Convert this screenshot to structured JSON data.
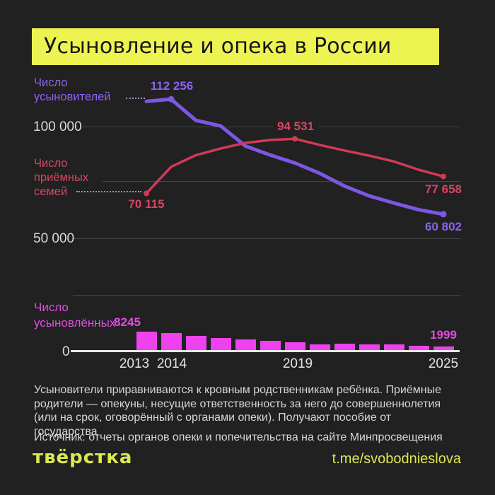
{
  "title": "Усыновление и опека в России",
  "line_chart": {
    "adopters_label": "Число\nусыновителей",
    "foster_label": "Число\nприёмных\nсемей",
    "y_ticks": {
      "tick_100k": "100 000",
      "tick_50k": "50 000",
      "tick_0": "0"
    },
    "annotations": {
      "adopters_peak": "112 256",
      "adopters_end": "60 802",
      "foster_start": "70 115",
      "foster_peak": "94 531",
      "foster_end": "77 658"
    }
  },
  "bar_chart": {
    "label": "Число\nусыновлённых",
    "first_value": "8245",
    "last_value": "1999"
  },
  "x_axis": [
    "2013",
    "2014",
    "2019",
    "2025"
  ],
  "description": "Усыновители приравниваются к кровным родственникам ребёнка. Приёмные\nродители — опекуны, несущие ответственность за него до совершеннолетия\n(или на срок, оговорённый с органами опеки). Получают пособие от государства",
  "source": "Источник: отчеты органов опеки и попечительства на сайте Минпросвещения",
  "footer": {
    "logo_text": "твёрстка",
    "handle": "t.me/svobodnieslova"
  },
  "colors": {
    "background": "#212121",
    "banner_yellow": "#edf351",
    "footer_yellow": "#dce84e",
    "adopters_purple": "#7e56e4",
    "foster_red": "#d13a55",
    "adopted_magenta": "#ee42ee",
    "gridline": "#47474a",
    "axis_text": "#d9d9d9"
  },
  "chart_data": [
    {
      "type": "line",
      "title": "Усыновление и опека в России",
      "x": [
        2013,
        2014,
        2015,
        2016,
        2017,
        2018,
        2019,
        2020,
        2021,
        2022,
        2023,
        2024,
        2025
      ],
      "ylim": [
        0,
        115000
      ],
      "grid": true,
      "gridlines_at": [
        100000,
        75000,
        50000,
        25000
      ],
      "series": [
        {
          "name": "adopters",
          "label": "Число усыновителей",
          "color": "#7e56e4",
          "width": 5,
          "marker_indices": [
            1,
            12
          ],
          "marker_r": 4.5,
          "values": [
            111300,
            112256,
            102800,
            100300,
            91300,
            87300,
            83700,
            79100,
            73400,
            69000,
            65800,
            62800,
            60802
          ],
          "labeled_points": {
            "2014": 112256,
            "2025": 60802
          }
        },
        {
          "name": "foster",
          "label": "Число приёмных семей",
          "color": "#d13a55",
          "width": 3.5,
          "marker_indices": [
            0,
            6,
            12
          ],
          "marker_r": 4,
          "values": [
            70115,
            82000,
            87200,
            90200,
            92700,
            94000,
            94531,
            91800,
            89300,
            87000,
            84400,
            80700,
            77658
          ],
          "labeled_points": {
            "2013": 70115,
            "2019": 94531,
            "2025": 77658
          }
        }
      ]
    },
    {
      "type": "bar",
      "title": "Число усыновлённых",
      "categories": [
        2013,
        2014,
        2015,
        2016,
        2017,
        2018,
        2019,
        2020,
        2021,
        2022,
        2023,
        2024,
        2025
      ],
      "values": [
        8245,
        7700,
        6500,
        5500,
        5000,
        4500,
        3800,
        3000,
        3200,
        2900,
        2800,
        2200,
        1999
      ],
      "labeled_points": {
        "2013": 8245,
        "2025": 1999
      },
      "color": "#ee42ee",
      "ylim": [
        0,
        9000
      ]
    }
  ]
}
